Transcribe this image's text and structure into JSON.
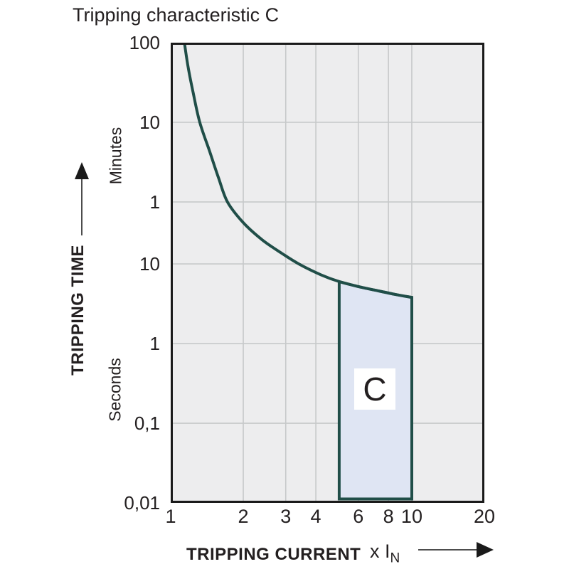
{
  "title": "Tripping characteristic C",
  "y_axis": {
    "title": "TRIPPING TIME",
    "unit_top": "Minutes",
    "unit_bottom": "Seconds"
  },
  "x_axis": {
    "title": "TRIPPING CURRENT",
    "multiplier_prefix": "x I",
    "multiplier_sub": "N"
  },
  "chart_data": {
    "type": "line",
    "x_scale": "log",
    "y_scale": "log",
    "x_range": [
      1,
      20
    ],
    "y_range_seconds": [
      0.01,
      6000
    ],
    "grid": true,
    "x_ticks": [
      {
        "label": "1",
        "value": 1
      },
      {
        "label": "2",
        "value": 2
      },
      {
        "label": "3",
        "value": 3
      },
      {
        "label": "4",
        "value": 4
      },
      {
        "label": "6",
        "value": 6
      },
      {
        "label": "8",
        "value": 8
      },
      {
        "label": "10",
        "value": 10
      },
      {
        "label": "20",
        "value": 20
      }
    ],
    "y_ticks": [
      {
        "label": "100",
        "seconds": 6000,
        "unit": "minutes"
      },
      {
        "label": "10",
        "seconds": 600,
        "unit": "minutes"
      },
      {
        "label": "1",
        "seconds": 60,
        "unit": "minutes"
      },
      {
        "label": "10",
        "seconds": 10,
        "unit": "seconds"
      },
      {
        "label": "1",
        "seconds": 1,
        "unit": "seconds"
      },
      {
        "label": "0,1",
        "seconds": 0.1,
        "unit": "seconds"
      },
      {
        "label": "0,01",
        "seconds": 0.01,
        "unit": "seconds"
      }
    ],
    "x_gridlines": [
      2,
      3,
      4,
      6,
      8,
      10
    ],
    "y_gridlines_seconds": [
      600,
      60,
      10,
      1,
      0.1
    ],
    "curve": {
      "name": "tripping-characteristic-C",
      "points_x_vs_seconds": [
        [
          1.14,
          6000
        ],
        [
          1.18,
          3000
        ],
        [
          1.24,
          1400
        ],
        [
          1.32,
          600
        ],
        [
          1.45,
          260
        ],
        [
          1.58,
          120
        ],
        [
          1.72,
          60
        ],
        [
          2.0,
          33
        ],
        [
          2.4,
          20
        ],
        [
          2.9,
          13.5
        ],
        [
          3.4,
          10
        ],
        [
          4.2,
          7.3
        ],
        [
          5.0,
          6.0
        ],
        [
          6.0,
          5.2
        ],
        [
          7.0,
          4.7
        ],
        [
          8.5,
          4.15
        ],
        [
          10.0,
          3.8
        ]
      ]
    },
    "region": {
      "label": "C",
      "x_from": 5,
      "x_to": 10,
      "top_points_x_vs_seconds": [
        [
          5.0,
          6.0
        ],
        [
          6.0,
          5.2
        ],
        [
          7.0,
          4.7
        ],
        [
          8.5,
          4.15
        ],
        [
          10.0,
          3.8
        ]
      ],
      "bottom_seconds": 0.0112
    },
    "colors": {
      "curve": "#204e48",
      "region_fill": "#dfe5f3",
      "region_border": "#204e48",
      "plot_bg": "#ededee",
      "gridline": "#c7c9ca",
      "plot_border": "#1a1a1a",
      "text": "#231f20"
    }
  }
}
